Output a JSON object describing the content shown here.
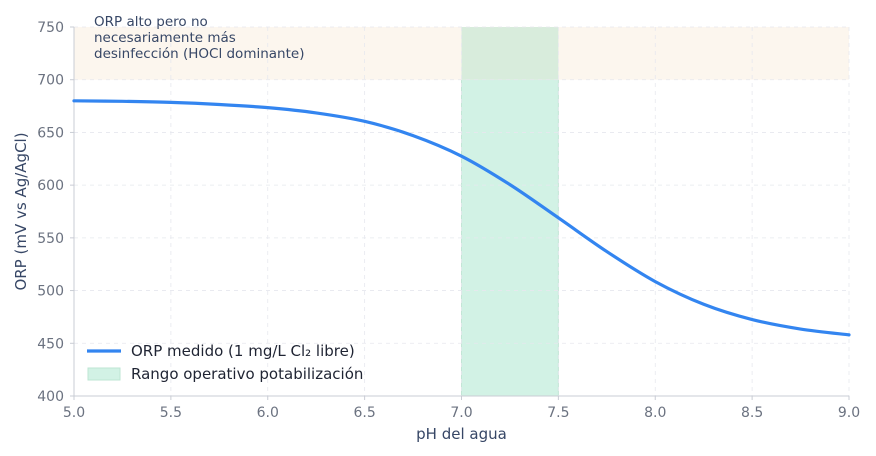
{
  "chart_data": {
    "type": "line",
    "title": "",
    "xlabel": "pH del agua",
    "ylabel": "ORP (mV vs Ag/AgCl)",
    "xlim": [
      5.0,
      9.0
    ],
    "ylim": [
      400,
      750
    ],
    "x_ticks": [
      "5.0",
      "5.5",
      "6.0",
      "6.5",
      "7.0",
      "7.5",
      "8.0",
      "8.5",
      "9.0"
    ],
    "y_ticks": [
      "400",
      "450",
      "500",
      "550",
      "600",
      "650",
      "700",
      "750"
    ],
    "grid": true,
    "legend_position": "lower-left",
    "series": [
      {
        "name": "ORP medido (1 mg/L Cl₂ libre)",
        "color": "#3385f0",
        "x": [
          5.0,
          5.25,
          5.5,
          5.75,
          6.0,
          6.25,
          6.5,
          6.75,
          7.0,
          7.25,
          7.5,
          7.75,
          8.0,
          8.25,
          8.5,
          8.75,
          9.0
        ],
        "y": [
          680,
          679.5,
          678.5,
          676.5,
          673.5,
          668.5,
          660.5,
          647.0,
          627.5,
          600.5,
          569.0,
          537.0,
          508.5,
          487.0,
          472.5,
          463.5,
          458.0
        ]
      }
    ],
    "bands": [
      {
        "label": "Rango operativo potabilización",
        "axis": "x",
        "range": [
          7.0,
          7.5
        ],
        "color": "#d2f2e5"
      },
      {
        "label": "ORP alto pero no necesariamente más desinfección (HOCl dominante)",
        "axis": "y",
        "range": [
          700,
          750
        ],
        "color": "#fcf6ee"
      }
    ],
    "annotations": [
      {
        "lines": [
          "ORP alto pero no",
          "necesariamente más",
          "desinfección (HOCl dominante)"
        ]
      }
    ],
    "legend": [
      {
        "label": "ORP medido (1 mg/L Cl₂ libre)",
        "kind": "line",
        "color": "#3385f0"
      },
      {
        "label": "Rango operativo potabilización",
        "kind": "patch",
        "color": "#d2f2e5"
      }
    ]
  }
}
